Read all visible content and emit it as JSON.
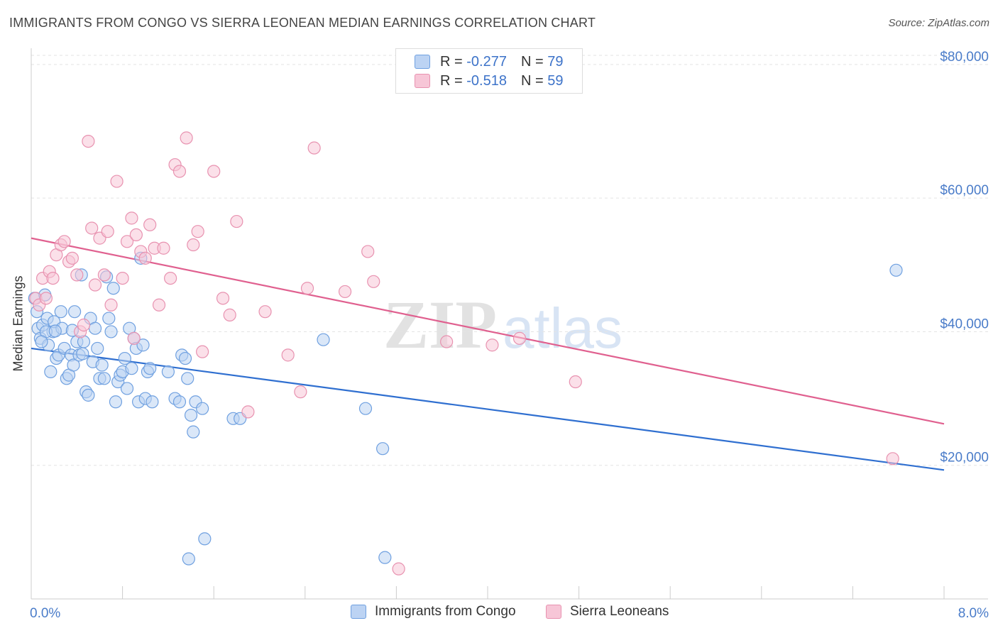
{
  "title": "IMMIGRANTS FROM CONGO VS SIERRA LEONEAN MEDIAN EARNINGS CORRELATION CHART",
  "source": "Source: ZipAtlas.com",
  "watermark": {
    "zip": "ZIP",
    "atlas": "atlas"
  },
  "legend": {
    "r_label": "R =",
    "n_label": "N =",
    "rows": [
      {
        "r": "-0.277",
        "n": "79"
      },
      {
        "r": "-0.518",
        "n": "59"
      }
    ]
  },
  "chart_data": {
    "type": "scatter",
    "ylabel": "Median Earnings",
    "x_ticks": [
      "0.0%",
      "8.0%"
    ],
    "xlim": [
      0,
      8
    ],
    "ylim": [
      0,
      82000
    ],
    "y_ticks": [
      {
        "value": 20000,
        "label": "$20,000"
      },
      {
        "value": 40000,
        "label": "$40,000"
      },
      {
        "value": 60000,
        "label": "$60,000"
      },
      {
        "value": 80000,
        "label": "$80,000"
      }
    ],
    "grid": true,
    "series": [
      {
        "name": "Immigrants from Congo",
        "color": "#6fa0e0",
        "fill": "#bcd3f3",
        "line_color": "#2f6fd0",
        "trend": [
          [
            0,
            37500
          ],
          [
            8,
            19300
          ]
        ],
        "points": [
          [
            0.03,
            45000
          ],
          [
            0.05,
            43000
          ],
          [
            0.06,
            40500
          ],
          [
            0.08,
            39000
          ],
          [
            0.1,
            41000
          ],
          [
            0.12,
            45500
          ],
          [
            0.14,
            42000
          ],
          [
            0.15,
            38000
          ],
          [
            0.17,
            34000
          ],
          [
            0.19,
            40000
          ],
          [
            0.2,
            41500
          ],
          [
            0.22,
            36000
          ],
          [
            0.24,
            36500
          ],
          [
            0.26,
            43000
          ],
          [
            0.27,
            40500
          ],
          [
            0.29,
            37500
          ],
          [
            0.31,
            33000
          ],
          [
            0.33,
            33500
          ],
          [
            0.35,
            36500
          ],
          [
            0.37,
            35000
          ],
          [
            0.38,
            43000
          ],
          [
            0.4,
            38500
          ],
          [
            0.42,
            36500
          ],
          [
            0.44,
            48500
          ],
          [
            0.46,
            38500
          ],
          [
            0.48,
            31000
          ],
          [
            0.5,
            30500
          ],
          [
            0.52,
            42000
          ],
          [
            0.54,
            35500
          ],
          [
            0.56,
            40500
          ],
          [
            0.58,
            37500
          ],
          [
            0.6,
            33000
          ],
          [
            0.62,
            35000
          ],
          [
            0.64,
            33000
          ],
          [
            0.66,
            48200
          ],
          [
            0.68,
            42000
          ],
          [
            0.7,
            40000
          ],
          [
            0.72,
            46500
          ],
          [
            0.74,
            29500
          ],
          [
            0.76,
            32500
          ],
          [
            0.78,
            33500
          ],
          [
            0.8,
            34000
          ],
          [
            0.82,
            36000
          ],
          [
            0.84,
            31500
          ],
          [
            0.86,
            40500
          ],
          [
            0.88,
            34500
          ],
          [
            0.9,
            39000
          ],
          [
            0.92,
            37500
          ],
          [
            0.94,
            29500
          ],
          [
            0.96,
            51000
          ],
          [
            0.98,
            38000
          ],
          [
            1.0,
            30000
          ],
          [
            1.02,
            34000
          ],
          [
            1.04,
            34500
          ],
          [
            1.06,
            29500
          ],
          [
            1.2,
            34000
          ],
          [
            1.26,
            30000
          ],
          [
            1.3,
            29500
          ],
          [
            1.32,
            36500
          ],
          [
            1.35,
            36000
          ],
          [
            1.37,
            33000
          ],
          [
            1.4,
            27500
          ],
          [
            1.42,
            25000
          ],
          [
            1.44,
            29500
          ],
          [
            1.5,
            28500
          ],
          [
            1.52,
            9000
          ],
          [
            1.77,
            27000
          ],
          [
            1.83,
            27000
          ],
          [
            2.56,
            38800
          ],
          [
            2.93,
            28500
          ],
          [
            3.08,
            22500
          ],
          [
            3.1,
            6200
          ],
          [
            1.38,
            6000
          ],
          [
            7.58,
            49200
          ],
          [
            0.13,
            40000
          ],
          [
            0.09,
            38500
          ],
          [
            0.36,
            40200
          ],
          [
            0.21,
            40100
          ],
          [
            0.45,
            36700
          ]
        ]
      },
      {
        "name": "Sierra Leoneans",
        "color": "#e892b0",
        "fill": "#f7c6d7",
        "line_color": "#e0608f",
        "trend": [
          [
            0,
            54000
          ],
          [
            8,
            26200
          ]
        ],
        "points": [
          [
            0.04,
            45000
          ],
          [
            0.07,
            44000
          ],
          [
            0.1,
            48000
          ],
          [
            0.13,
            45000
          ],
          [
            0.16,
            49000
          ],
          [
            0.19,
            48000
          ],
          [
            0.22,
            51500
          ],
          [
            0.26,
            53000
          ],
          [
            0.29,
            53500
          ],
          [
            0.33,
            50500
          ],
          [
            0.36,
            51000
          ],
          [
            0.4,
            48500
          ],
          [
            0.43,
            40000
          ],
          [
            0.46,
            41000
          ],
          [
            0.5,
            68500
          ],
          [
            0.53,
            55500
          ],
          [
            0.56,
            47000
          ],
          [
            0.6,
            54000
          ],
          [
            0.64,
            48500
          ],
          [
            0.67,
            55000
          ],
          [
            0.7,
            44000
          ],
          [
            0.75,
            62500
          ],
          [
            0.8,
            48000
          ],
          [
            0.84,
            53500
          ],
          [
            0.88,
            57000
          ],
          [
            0.92,
            54500
          ],
          [
            0.96,
            52000
          ],
          [
            1.0,
            51000
          ],
          [
            1.04,
            56000
          ],
          [
            1.08,
            52500
          ],
          [
            1.12,
            44000
          ],
          [
            1.16,
            52500
          ],
          [
            1.22,
            48000
          ],
          [
            1.26,
            65000
          ],
          [
            1.3,
            64000
          ],
          [
            1.36,
            69000
          ],
          [
            1.42,
            53000
          ],
          [
            1.46,
            55000
          ],
          [
            1.5,
            37000
          ],
          [
            1.6,
            64000
          ],
          [
            1.68,
            45000
          ],
          [
            1.74,
            42500
          ],
          [
            1.8,
            56500
          ],
          [
            1.9,
            28000
          ],
          [
            2.05,
            43000
          ],
          [
            2.25,
            36500
          ],
          [
            2.36,
            31000
          ],
          [
            2.42,
            46500
          ],
          [
            2.48,
            67500
          ],
          [
            2.75,
            46000
          ],
          [
            2.95,
            52000
          ],
          [
            3.0,
            47500
          ],
          [
            3.64,
            38500
          ],
          [
            4.04,
            38000
          ],
          [
            4.28,
            39000
          ],
          [
            4.77,
            32500
          ],
          [
            7.55,
            21000
          ],
          [
            3.22,
            4500
          ],
          [
            0.9,
            39000
          ]
        ]
      }
    ]
  }
}
